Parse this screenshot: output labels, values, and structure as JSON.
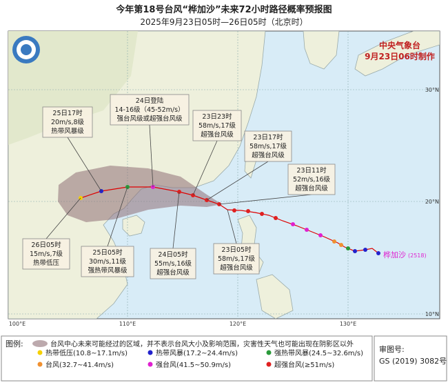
{
  "header": {
    "title": "今年第18号台风“桦加沙”未来72小时路径概率预报图",
    "subtitle": "2025年9月23日05时—26日05时（北京时）"
  },
  "agency": {
    "name": "中央气象台",
    "issued": "9月23日06时制作"
  },
  "annotations": [
    {
      "lines": [
        "25日17时",
        "20m/s,8级",
        "热带风暴级"
      ]
    },
    {
      "lines": [
        "24日登陆",
        "14-16级（45-52m/s）",
        "强台风级或超强台风级"
      ]
    },
    {
      "lines": [
        "23日23时",
        "58m/s,17级",
        "超强台风级"
      ]
    },
    {
      "lines": [
        "23日17时",
        "58m/s,17级",
        "超强台风级"
      ]
    },
    {
      "lines": [
        "23日11时",
        "52m/s,16级",
        "超强台风级"
      ]
    },
    {
      "lines": [
        "26日05时",
        "15m/s,7级",
        "热带低压"
      ]
    },
    {
      "lines": [
        "25日05时",
        "30m/s,11级",
        "强热带风暴级"
      ]
    },
    {
      "lines": [
        "24日05时",
        "55m/s,16级",
        "超强台风级"
      ]
    },
    {
      "lines": [
        "23日05时",
        "58m/s,17级",
        "超强台风级"
      ]
    }
  ],
  "storm_label": {
    "name": "桦加沙",
    "code": "(2518)"
  },
  "axes": {
    "bottom": [
      "100°E",
      "110°E",
      "120°E",
      "130°E"
    ],
    "right": [
      "30°N",
      "20°N",
      "10°N"
    ]
  },
  "legend": {
    "title": "图例:",
    "cone_note": "台风中心未来可能经过的区域，并不表示台风大小及影响范围，灾害性天气也可能出现在阴影区以外",
    "items": [
      "热带低压(10.8~17.1m/s)",
      "热带风暴(17.2~24.4m/s)",
      "强热带风暴(24.5~32.6m/s)",
      "台风(32.7~41.4m/s)",
      "强台风(41.5~50.9m/s)",
      "超强台风(≥51m/s)"
    ]
  },
  "approval": {
    "label": "审图号:",
    "code": "GS (2019) 3082号"
  }
}
